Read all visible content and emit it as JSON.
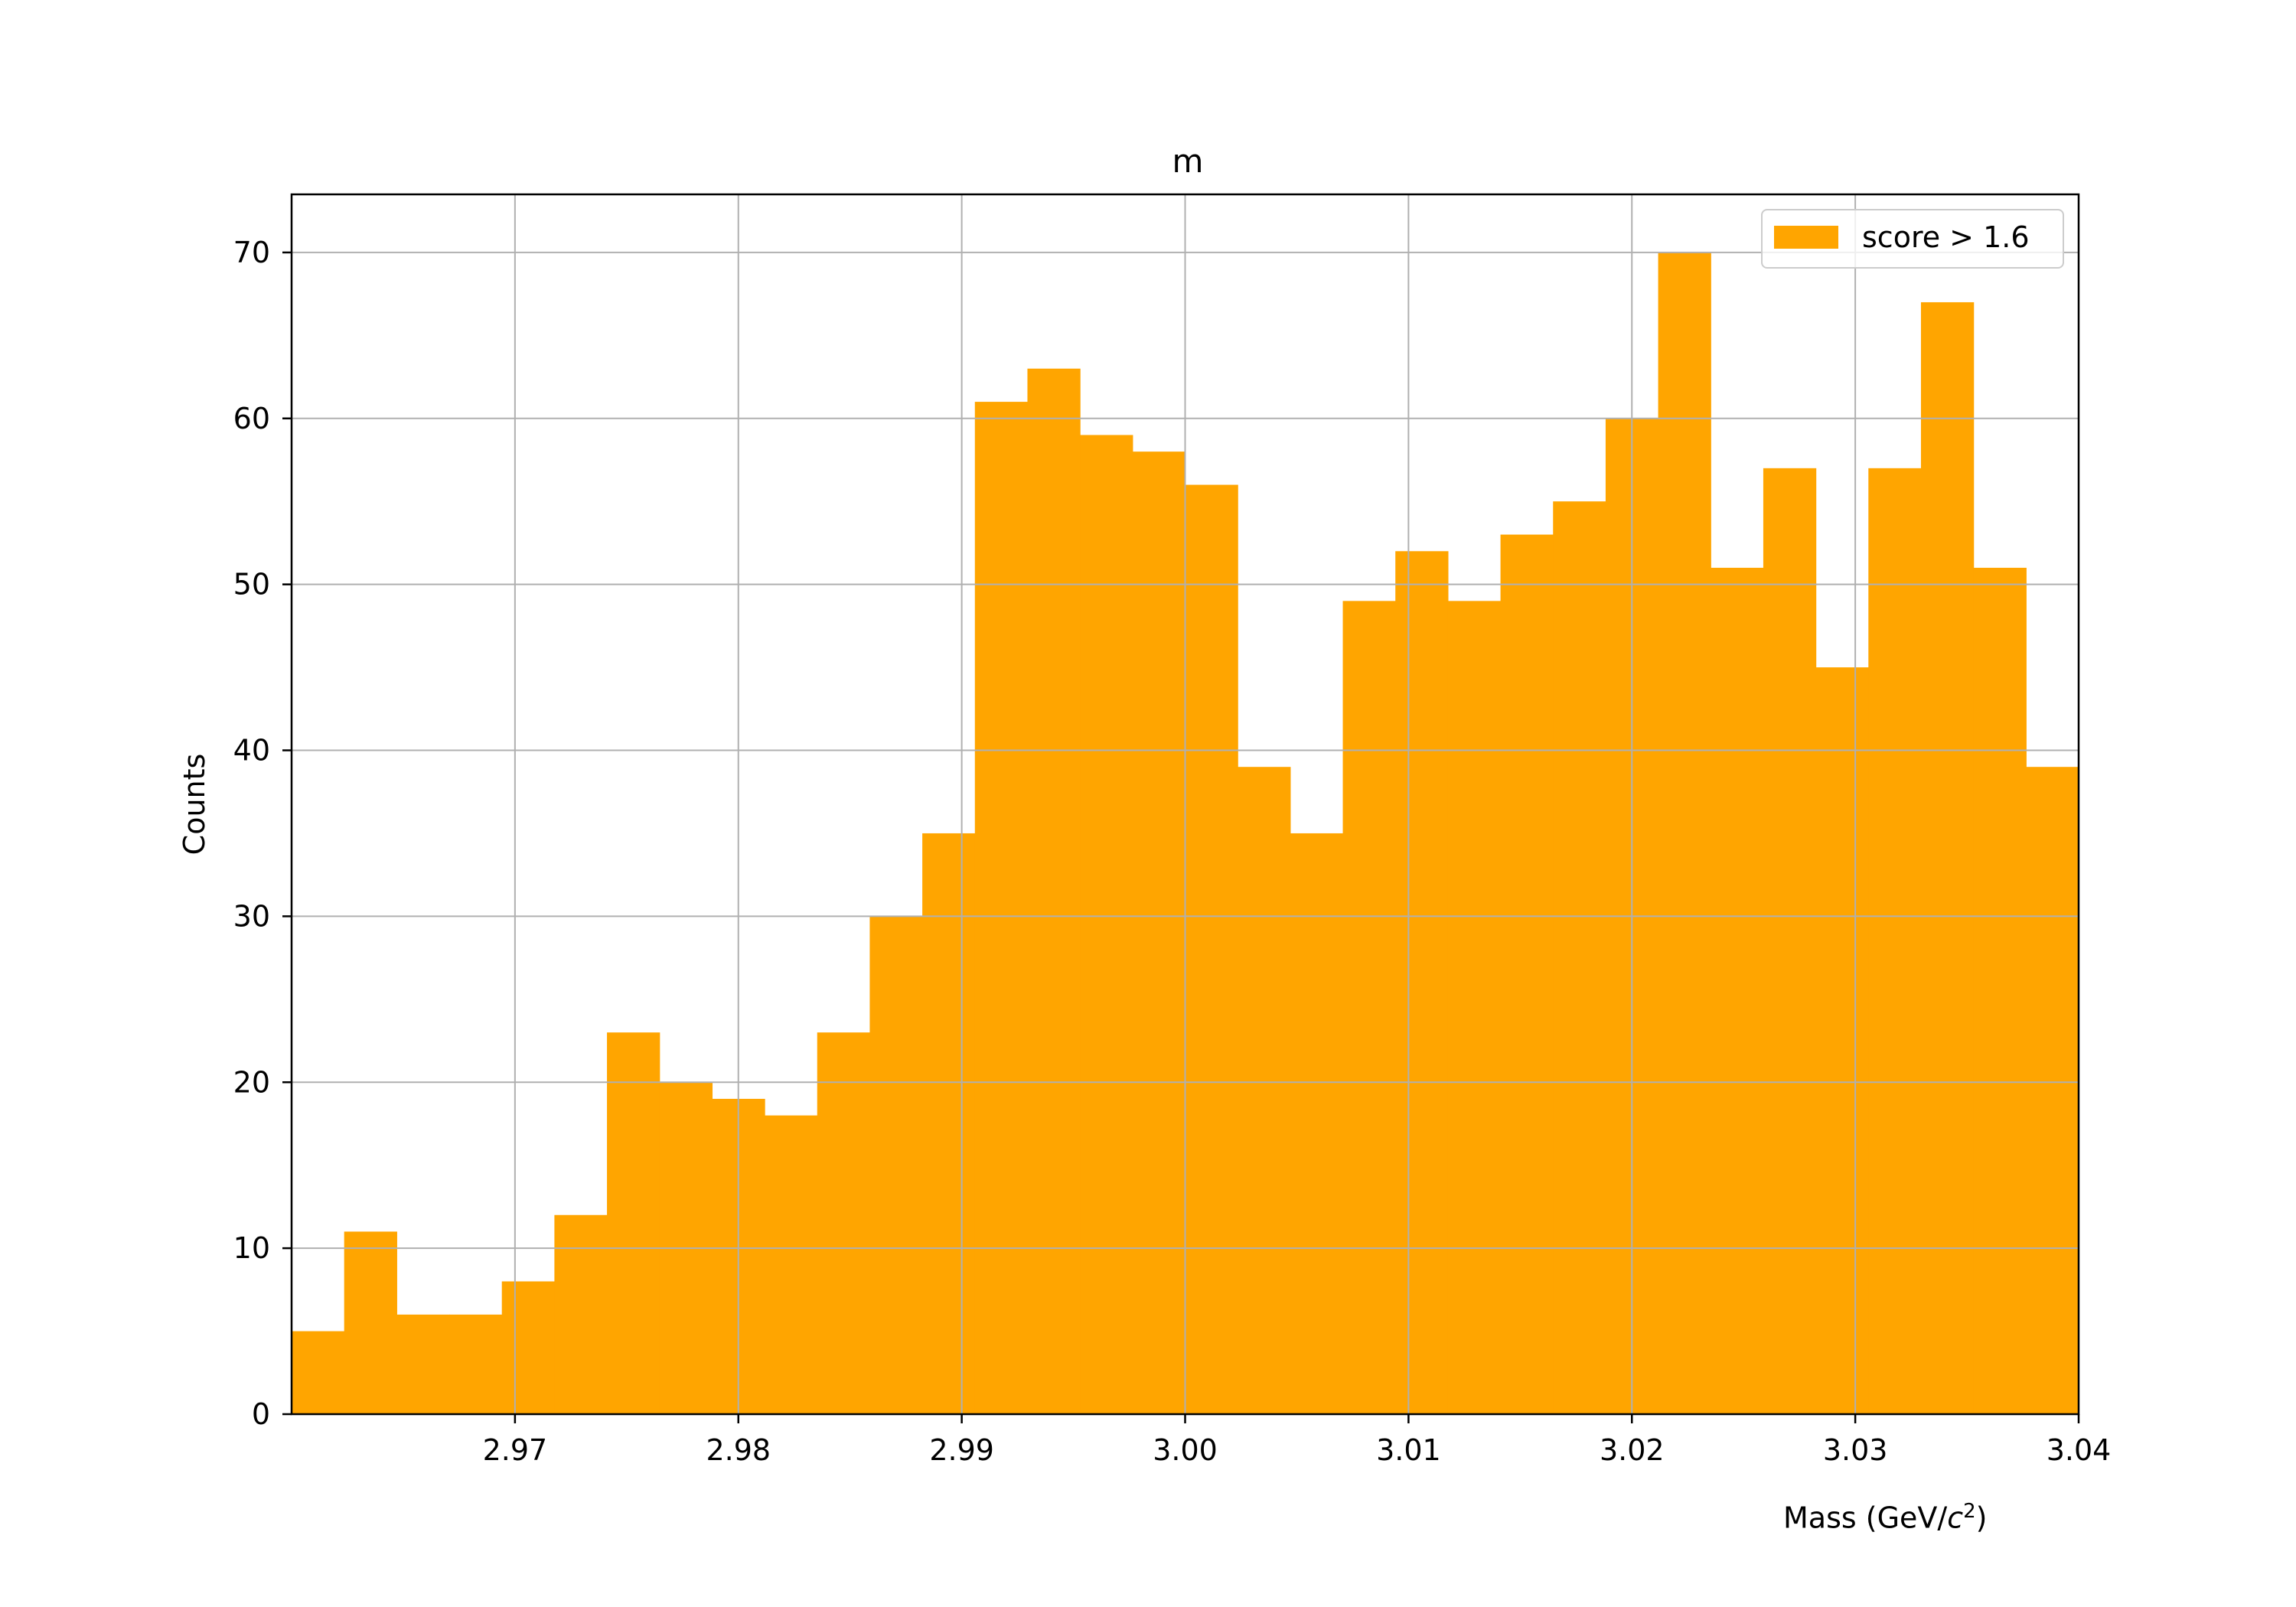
{
  "chart_data": {
    "type": "bar",
    "title": "m",
    "ylabel": "Counts",
    "xlabel": "Mass (GeV/c²)",
    "xlabel_parts": {
      "prefix": "Mass (GeV/",
      "var": "c",
      "exp": "2",
      "suffix": ")"
    },
    "xlim": [
      2.96,
      3.04
    ],
    "ylim": [
      0,
      73.5
    ],
    "x_ticks": [
      2.97,
      2.98,
      2.99,
      3.0,
      3.01,
      3.02,
      3.03,
      3.04
    ],
    "x_tick_labels": [
      "2.97",
      "2.98",
      "2.99",
      "3.00",
      "3.01",
      "3.02",
      "3.03",
      "3.04"
    ],
    "y_ticks": [
      0,
      10,
      20,
      30,
      40,
      50,
      60,
      70
    ],
    "y_tick_labels": [
      "0",
      "10",
      "20",
      "30",
      "40",
      "50",
      "60",
      "70"
    ],
    "grid": true,
    "legend_position": "top-right",
    "series": [
      {
        "name": "score > 1.6",
        "color": "#ffa500",
        "bin_edges": [
          2.96,
          2.962353,
          2.964706,
          2.967059,
          2.969412,
          2.971765,
          2.974118,
          2.976471,
          2.978824,
          2.981176,
          2.983529,
          2.985882,
          2.988235,
          2.990588,
          2.992941,
          2.995294,
          2.997647,
          3.0,
          3.002353,
          3.004706,
          3.007059,
          3.009412,
          3.011765,
          3.014118,
          3.016471,
          3.018824,
          3.021176,
          3.023529,
          3.025882,
          3.028235,
          3.030588,
          3.032941,
          3.035294,
          3.037647,
          3.04
        ],
        "values": [
          5,
          11,
          6,
          6,
          8,
          12,
          23,
          20,
          19,
          18,
          23,
          30,
          35,
          61,
          63,
          59,
          58,
          56,
          39,
          35,
          49,
          52,
          49,
          53,
          55,
          60,
          70,
          51,
          57,
          45,
          57,
          67,
          51,
          39
        ]
      }
    ]
  }
}
